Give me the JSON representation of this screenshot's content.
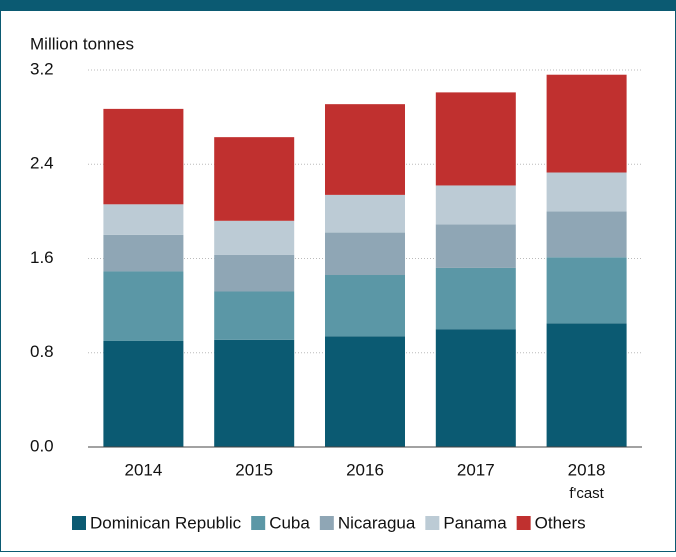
{
  "chart_data": {
    "type": "stacked_bar",
    "y_axis_label": "Million tonnes",
    "categories": [
      "2014",
      "2015",
      "2016",
      "2017",
      "2018"
    ],
    "annotations": [
      "f'cast"
    ],
    "series": [
      {
        "name": "Dominican Republic",
        "color": "#0b5a72",
        "values": [
          0.9,
          0.91,
          0.94,
          1.0,
          1.05
        ]
      },
      {
        "name": "Cuba",
        "color": "#5b97a6",
        "values": [
          0.59,
          0.41,
          0.52,
          0.52,
          0.56
        ]
      },
      {
        "name": "Nicaragua",
        "color": "#8fa6b5",
        "values": [
          0.31,
          0.31,
          0.36,
          0.37,
          0.39
        ]
      },
      {
        "name": "Panama",
        "color": "#bccbd5",
        "values": [
          0.26,
          0.29,
          0.32,
          0.33,
          0.33
        ]
      },
      {
        "name": "Others",
        "color": "#c0302f",
        "values": [
          0.81,
          0.71,
          0.77,
          0.79,
          0.83
        ]
      }
    ],
    "ylim": [
      0,
      3.2
    ],
    "yticks": [
      {
        "value": 0,
        "label": "0.0"
      },
      0.8,
      1.6,
      2.4,
      3.2
    ],
    "grid": true,
    "legend": "bottom"
  }
}
